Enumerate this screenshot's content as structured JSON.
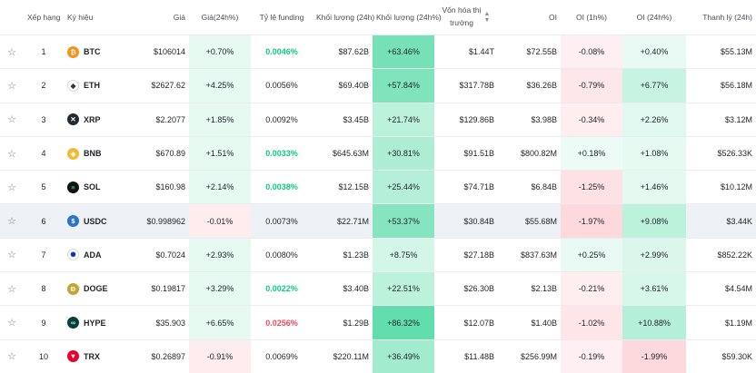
{
  "headers": {
    "rank": "Xếp hạng",
    "symbol": "Ký hiệu",
    "price": "Giá",
    "change": "Giá(24h%)",
    "funding": "Tỷ lệ funding",
    "volume": "Khối lượng (24h)",
    "volume_change": "Khối lượng (24h%)",
    "mcap_line1": "Vốn hóa thị",
    "mcap_line2": "trường",
    "oi": "OI",
    "oi_1h": "OI (1h%)",
    "oi_24h": "OI (24h%)",
    "liq": "Thanh lý (24h)"
  },
  "icons": {
    "star": "star-icon",
    "sort": "sort-icon"
  },
  "rows": [
    {
      "rank": "1",
      "symbol": "BTC",
      "price": "$106014",
      "change": "+0.70%",
      "funding": "0.0046%",
      "funding_style": "pos",
      "volume": "$87.62B",
      "vol_change": "+63.46%",
      "mcap": "$1.44T",
      "oi": "$72.55B",
      "oi_1h": "-0.08%",
      "oi_24h": "+0.40%",
      "liq": "$55.13M",
      "icon": {
        "bg": "#f7931a",
        "g": "₿"
      }
    },
    {
      "rank": "2",
      "symbol": "ETH",
      "price": "$2627.62",
      "change": "+4.25%",
      "funding": "0.0056%",
      "funding_style": "",
      "volume": "$69.40B",
      "vol_change": "+57.84%",
      "mcap": "$317.78B",
      "oi": "$36.26B",
      "oi_1h": "-0.79%",
      "oi_24h": "+6.77%",
      "liq": "$56.18M",
      "icon": {
        "bg": "#ffffff",
        "g": "◆",
        "fg": "#343434"
      }
    },
    {
      "rank": "3",
      "symbol": "XRP",
      "price": "$2.2077",
      "change": "+1.85%",
      "funding": "0.0092%",
      "funding_style": "",
      "volume": "$3.45B",
      "vol_change": "+21.74%",
      "mcap": "$129.86B",
      "oi": "$3.98B",
      "oi_1h": "-0.34%",
      "oi_24h": "+2.26%",
      "liq": "$3.12M",
      "icon": {
        "bg": "#23292f",
        "g": "✕"
      }
    },
    {
      "rank": "4",
      "symbol": "BNB",
      "price": "$670.89",
      "change": "+1.51%",
      "funding": "0.0033%",
      "funding_style": "pos",
      "volume": "$645.63M",
      "vol_change": "+30.81%",
      "mcap": "$91.51B",
      "oi": "$800.82M",
      "oi_1h": "+0.18%",
      "oi_24h": "+1.08%",
      "liq": "$526.33K",
      "icon": {
        "bg": "#f3ba2f",
        "g": "◈"
      }
    },
    {
      "rank": "5",
      "symbol": "SOL",
      "price": "$160.98",
      "change": "+2.14%",
      "funding": "0.0038%",
      "funding_style": "pos",
      "volume": "$12.15B",
      "vol_change": "+25.44%",
      "mcap": "$74.71B",
      "oi": "$6.84B",
      "oi_1h": "-1.25%",
      "oi_24h": "+1.46%",
      "liq": "$10.12M",
      "icon": {
        "bg": "#111111",
        "g": "≡",
        "fg": "#14f195"
      }
    },
    {
      "rank": "6",
      "symbol": "USDC",
      "price": "$0.998962",
      "change": "-0.01%",
      "funding": "0.0073%",
      "funding_style": "",
      "volume": "$22.71M",
      "vol_change": "+53.37%",
      "mcap": "$30.84B",
      "oi": "$55.68M",
      "oi_1h": "-1.97%",
      "oi_24h": "+9.08%",
      "liq": "$3.44K",
      "icon": {
        "bg": "#2775ca",
        "g": "$"
      }
    },
    {
      "rank": "7",
      "symbol": "ADA",
      "price": "$0.7024",
      "change": "+2.93%",
      "funding": "0.0080%",
      "funding_style": "",
      "volume": "$1.23B",
      "vol_change": "+8.75%",
      "mcap": "$27.18B",
      "oi": "$837.63M",
      "oi_1h": "+0.25%",
      "oi_24h": "+2.99%",
      "liq": "$852.22K",
      "icon": {
        "bg": "#ffffff",
        "g": "✺",
        "fg": "#0033ad"
      }
    },
    {
      "rank": "8",
      "symbol": "DOGE",
      "price": "$0.19817",
      "change": "+3.29%",
      "funding": "0.0022%",
      "funding_style": "pos",
      "volume": "$3.40B",
      "vol_change": "+22.51%",
      "mcap": "$26.30B",
      "oi": "$2.13B",
      "oi_1h": "-0.21%",
      "oi_24h": "+3.61%",
      "liq": "$4.54M",
      "icon": {
        "bg": "#c2a633",
        "g": "Ð"
      }
    },
    {
      "rank": "9",
      "symbol": "HYPE",
      "price": "$35.903",
      "change": "+6.65%",
      "funding": "0.0256%",
      "funding_style": "neg",
      "volume": "$1.29B",
      "vol_change": "+86.32%",
      "mcap": "$12.07B",
      "oi": "$1.40B",
      "oi_1h": "-1.02%",
      "oi_24h": "+10.88%",
      "liq": "$1.19M",
      "icon": {
        "bg": "#0b3d3a",
        "g": "∞",
        "fg": "#97fce4"
      }
    },
    {
      "rank": "10",
      "symbol": "TRX",
      "price": "$0.26897",
      "change": "-0.91%",
      "funding": "0.0069%",
      "funding_style": "",
      "volume": "$220.11M",
      "vol_change": "+36.49%",
      "mcap": "$11.48B",
      "oi": "$256.99M",
      "oi_1h": "-0.19%",
      "oi_24h": "-1.99%",
      "liq": "$59.30K",
      "icon": {
        "bg": "#eb0029",
        "g": "▼"
      }
    }
  ]
}
